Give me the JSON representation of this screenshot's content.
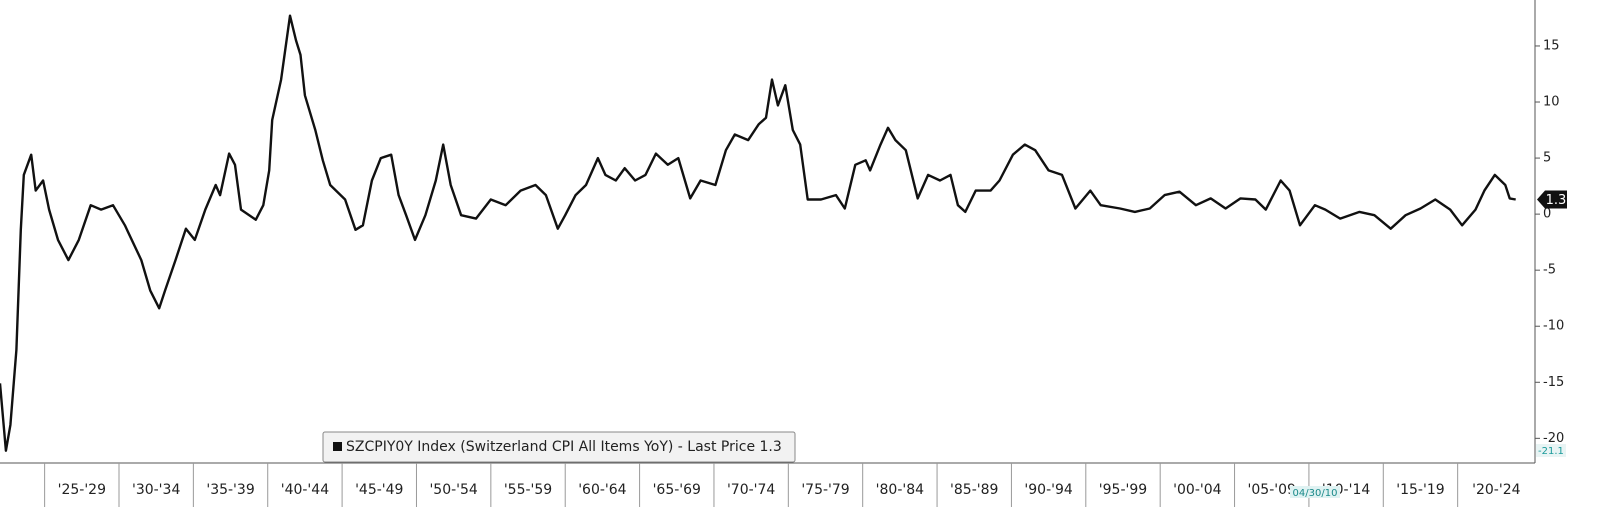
{
  "chart_data": {
    "type": "line",
    "x": [
      1922.0,
      1922.4,
      1922.7,
      1923.1,
      1923.4,
      1923.6,
      1924.1,
      1924.4,
      1924.9,
      1925.3,
      1925.9,
      1926.6,
      1927.3,
      1928.1,
      1928.8,
      1929.6,
      1930.4,
      1931.5,
      1932.1,
      1932.7,
      1933.1,
      1933.8,
      1934.5,
      1935.1,
      1935.8,
      1936.5,
      1936.8,
      1937.4,
      1937.8,
      1938.2,
      1939.2,
      1939.7,
      1940.1,
      1940.3,
      1940.9,
      1941.5,
      1941.9,
      1942.2,
      1942.5,
      1943.2,
      1943.7,
      1944.2,
      1945.2,
      1945.9,
      1946.4,
      1947.0,
      1947.6,
      1948.3,
      1948.8,
      1949.3,
      1949.9,
      1950.6,
      1951.3,
      1951.8,
      1952.3,
      1953.0,
      1954.0,
      1955.0,
      1956.0,
      1957.0,
      1958.0,
      1958.7,
      1959.5,
      1960.0,
      1960.7,
      1961.4,
      1962.2,
      1962.7,
      1963.4,
      1964.0,
      1964.7,
      1965.4,
      1966.1,
      1966.9,
      1967.6,
      1968.4,
      1969.1,
      1970.1,
      1970.8,
      1971.4,
      1972.3,
      1973.0,
      1973.5,
      1973.9,
      1974.3,
      1974.8,
      1975.3,
      1975.8,
      1976.3,
      1977.2,
      1978.2,
      1978.8,
      1979.5,
      1980.2,
      1980.5,
      1981.2,
      1981.7,
      1982.2,
      1982.9,
      1983.7,
      1984.4,
      1985.2,
      1985.9,
      1986.4,
      1986.9,
      1987.6,
      1988.6,
      1989.2,
      1990.1,
      1990.9,
      1991.6,
      1992.5,
      1993.4,
      1994.3,
      1995.3,
      1996.0,
      1997.3,
      1998.3,
      1999.3,
      2000.3,
      2001.3,
      2002.4,
      2003.4,
      2004.4,
      2005.4,
      2006.4,
      2007.1,
      2008.1,
      2008.7,
      2009.4,
      2010.4,
      2011.1,
      2012.1,
      2013.4,
      2014.4,
      2015.5,
      2016.5,
      2017.5,
      2018.5,
      2019.5,
      2020.3,
      2021.2,
      2021.8,
      2022.5,
      2023.2,
      2023.5,
      2023.9
    ],
    "series": [
      {
        "name": "SZCPIY0Y Index (Switzerland CPI All Items YoY) - Last Price 1.3",
        "color": "#111111",
        "values": [
          -15.1,
          -21.1,
          -18.8,
          -12.1,
          -1.4,
          3.5,
          5.3,
          2.1,
          3.0,
          0.4,
          -2.3,
          -4.1,
          -2.3,
          0.8,
          0.4,
          0.8,
          -1.0,
          -4.1,
          -6.8,
          -8.4,
          -6.8,
          -4.1,
          -1.3,
          -2.3,
          0.4,
          2.6,
          1.7,
          5.4,
          4.4,
          0.4,
          -0.5,
          0.8,
          3.9,
          8.4,
          12.0,
          17.7,
          15.5,
          14.2,
          10.6,
          7.5,
          4.8,
          2.6,
          1.3,
          -1.4,
          -1.0,
          3.0,
          5.0,
          5.3,
          1.7,
          -0.1,
          -2.3,
          -0.1,
          3.0,
          6.2,
          2.6,
          -0.1,
          -0.4,
          1.3,
          0.8,
          2.1,
          2.6,
          1.7,
          -1.3,
          -0.1,
          1.7,
          2.6,
          5.0,
          3.5,
          3.0,
          4.1,
          3.0,
          3.5,
          5.4,
          4.4,
          5.0,
          1.4,
          3.0,
          2.6,
          5.7,
          7.1,
          6.6,
          8.0,
          8.6,
          12.0,
          9.7,
          11.5,
          7.5,
          6.2,
          1.3,
          1.3,
          1.7,
          0.5,
          4.4,
          4.8,
          3.9,
          6.2,
          7.7,
          6.6,
          5.7,
          1.4,
          3.5,
          3.0,
          3.5,
          0.8,
          0.2,
          2.1,
          2.1,
          3.0,
          5.3,
          6.2,
          5.7,
          3.9,
          3.5,
          0.5,
          2.1,
          0.8,
          0.5,
          0.2,
          0.5,
          1.7,
          2.0,
          0.8,
          1.4,
          0.5,
          1.4,
          1.3,
          0.4,
          3.0,
          2.1,
          -1.0,
          0.8,
          0.4,
          -0.4,
          0.2,
          -0.1,
          -1.3,
          -0.1,
          0.5,
          1.3,
          0.4,
          -1.0,
          0.4,
          2.1,
          3.5,
          2.6,
          1.4,
          1.3
        ]
      }
    ],
    "xlim": [
      1922.0,
      2025.2
    ],
    "xticks": [
      {
        "value": 1925,
        "label": "'25-'29"
      },
      {
        "value": 1930,
        "label": "'30-'34"
      },
      {
        "value": 1935,
        "label": "'35-'39"
      },
      {
        "value": 1940,
        "label": "'40-'44"
      },
      {
        "value": 1945,
        "label": "'45-'49"
      },
      {
        "value": 1950,
        "label": "'50-'54"
      },
      {
        "value": 1955,
        "label": "'55-'59"
      },
      {
        "value": 1960,
        "label": "'60-'64"
      },
      {
        "value": 1965,
        "label": "'65-'69"
      },
      {
        "value": 1970,
        "label": "'70-'74"
      },
      {
        "value": 1975,
        "label": "'75-'79"
      },
      {
        "value": 1980,
        "label": "'80-'84"
      },
      {
        "value": 1985,
        "label": "'85-'89"
      },
      {
        "value": 1990,
        "label": "'90-'94"
      },
      {
        "value": 1995,
        "label": "'95-'99"
      },
      {
        "value": 2000,
        "label": "'00-'04"
      },
      {
        "value": 2005,
        "label": "'05-'09"
      },
      {
        "value": 2010,
        "label": "'10-'14"
      },
      {
        "value": 2015,
        "label": "'15-'19"
      },
      {
        "value": 2020,
        "label": "'20-'24"
      }
    ],
    "ylim": [
      -22.2,
      19.1
    ],
    "yticks": [
      -20,
      -15,
      -10,
      -5,
      0,
      5,
      10,
      15
    ],
    "annotation": "04/30/10"
  }
}
